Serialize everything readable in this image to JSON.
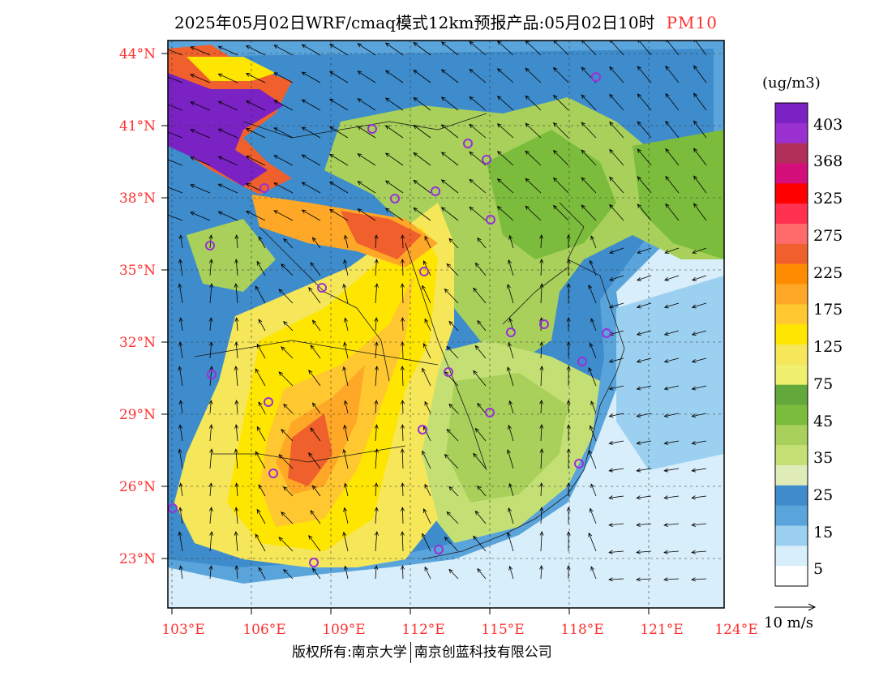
{
  "title": {
    "main": "2025年05月02日WRF/cmaq模式12km预报产品:05月02日10时",
    "variable": "PM10"
  },
  "axes": {
    "lat_labels": [
      "44°N",
      "41°N",
      "38°N",
      "35°N",
      "32°N",
      "29°N",
      "26°N",
      "23°N"
    ],
    "lon_labels": [
      "103°E",
      "106°E",
      "109°E",
      "112°E",
      "115°E",
      "118°E",
      "121°E",
      "124°E"
    ]
  },
  "colorbar": {
    "units": "(ug/m3)",
    "labels": [
      "403",
      "368",
      "325",
      "275",
      "225",
      "175",
      "125",
      "75",
      "45",
      "35",
      "25",
      "15",
      "5"
    ],
    "colors": [
      "#7a22c4",
      "#9b30d0",
      "#b0305a",
      "#d40f7c",
      "#ff0000",
      "#ff3050",
      "#ff6a6a",
      "#f0602c",
      "#ff8c00",
      "#ffa726",
      "#ffc830",
      "#ffe600",
      "#f5e65a",
      "#f0f06e",
      "#63a83a",
      "#7cbc3c",
      "#a8d05a",
      "#c4e074",
      "#e0ecb8",
      "#3f8ccc",
      "#5aa4dc",
      "#9cd0f0",
      "#d8eefa",
      "#ffffff"
    ]
  },
  "wind_reference": {
    "label": "10 m/s"
  },
  "footer": {
    "left": "版权所有:南京大学",
    "right": "南京创蓝科技有限公司"
  }
}
